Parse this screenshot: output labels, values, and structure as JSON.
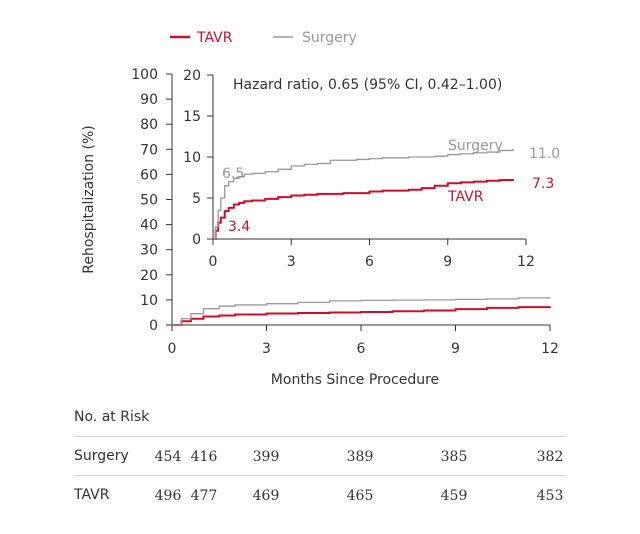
{
  "legend": {
    "items": [
      {
        "name": "TAVR",
        "color": "#c8102e"
      },
      {
        "name": "Surgery",
        "color": "#999999"
      }
    ]
  },
  "chart_data": [
    {
      "type": "line",
      "panel": "main",
      "ylabel": "Rehospitalization (%)",
      "xlabel": "Months Since Procedure",
      "xlim": [
        0,
        12
      ],
      "ylim": [
        0,
        100
      ],
      "x_ticks": [
        "0",
        "3",
        "6",
        "9",
        "12"
      ],
      "y_ticks": [
        "0",
        "10",
        "20",
        "30",
        "40",
        "50",
        "60",
        "70",
        "80",
        "90",
        "100"
      ],
      "series": [
        {
          "name": "TAVR",
          "color": "#c8102e",
          "x": [
            0,
            0.3,
            0.6,
            1,
            1.5,
            2,
            3,
            4,
            5,
            6,
            7,
            8,
            9,
            10,
            11,
            12
          ],
          "y": [
            0,
            1.5,
            2.5,
            3.4,
            3.8,
            4.2,
            4.6,
            4.8,
            5.0,
            5.2,
            5.5,
            5.8,
            6.3,
            6.8,
            7.1,
            7.3
          ]
        },
        {
          "name": "Surgery",
          "color": "#999999",
          "x": [
            0,
            0.3,
            0.6,
            1,
            1.5,
            2,
            3,
            4,
            5,
            6,
            7,
            8,
            9,
            10,
            11,
            12
          ],
          "y": [
            0,
            2.5,
            4.5,
            6.5,
            7.5,
            8.0,
            8.5,
            9.0,
            9.6,
            9.8,
            9.9,
            10.0,
            10.2,
            10.4,
            10.8,
            11.0
          ]
        }
      ]
    },
    {
      "type": "line",
      "panel": "inset",
      "xlim": [
        0,
        12
      ],
      "ylim": [
        0,
        20
      ],
      "x_ticks": [
        "0",
        "3",
        "6",
        "9",
        "12"
      ],
      "y_ticks": [
        "0",
        "5",
        "10",
        "15",
        "20"
      ],
      "annotation": "Hazard ratio, 0.65 (95% CI, 0.42–1.00)",
      "series": [
        {
          "name": "TAVR",
          "color": "#c8102e",
          "x": [
            0,
            0.1,
            0.2,
            0.3,
            0.45,
            0.6,
            0.8,
            1,
            1.2,
            1.5,
            2,
            2.5,
            3,
            3.5,
            4,
            4.5,
            5,
            5.5,
            6,
            6.5,
            7,
            7.5,
            8,
            8.5,
            9,
            9.5,
            10,
            10.5,
            11,
            11.5
          ],
          "y": [
            0,
            1.0,
            2.0,
            2.6,
            3.4,
            3.8,
            4.2,
            4.4,
            4.6,
            4.7,
            4.9,
            5.1,
            5.3,
            5.4,
            5.5,
            5.5,
            5.6,
            5.6,
            5.8,
            5.9,
            5.9,
            6.0,
            6.2,
            6.5,
            6.8,
            6.9,
            7.0,
            7.1,
            7.2,
            7.3
          ]
        },
        {
          "name": "Surgery",
          "color": "#999999",
          "x": [
            0,
            0.1,
            0.2,
            0.3,
            0.45,
            0.6,
            0.8,
            1,
            1.2,
            1.5,
            2,
            2.5,
            3,
            3.5,
            4,
            4.5,
            5,
            5.5,
            6,
            6.5,
            7,
            7.5,
            8,
            8.5,
            9,
            9.5,
            10,
            10.5,
            11,
            11.5
          ],
          "y": [
            0,
            1.5,
            3.5,
            5.0,
            6.5,
            7.0,
            7.4,
            7.6,
            7.9,
            8.0,
            8.2,
            8.5,
            8.9,
            9.1,
            9.2,
            9.6,
            9.6,
            9.7,
            9.8,
            9.9,
            9.9,
            10.0,
            10.0,
            10.1,
            10.3,
            10.4,
            10.5,
            10.6,
            10.8,
            11.0
          ]
        }
      ],
      "labels": [
        {
          "text": "6.5",
          "series": "Surgery"
        },
        {
          "text": "3.4",
          "series": "TAVR"
        },
        {
          "text": "Surgery",
          "series": "Surgery"
        },
        {
          "text": "11.0",
          "series": "Surgery"
        },
        {
          "text": "TAVR",
          "series": "TAVR"
        },
        {
          "text": "7.3",
          "series": "TAVR"
        }
      ]
    }
  ],
  "risk_table": {
    "title": "No. at Risk",
    "rows": [
      {
        "label": "Surgery",
        "values": [
          "454",
          "416",
          "399",
          "389",
          "385",
          "382"
        ]
      },
      {
        "label": "TAVR",
        "values": [
          "496",
          "477",
          "469",
          "465",
          "459",
          "453"
        ]
      }
    ]
  }
}
